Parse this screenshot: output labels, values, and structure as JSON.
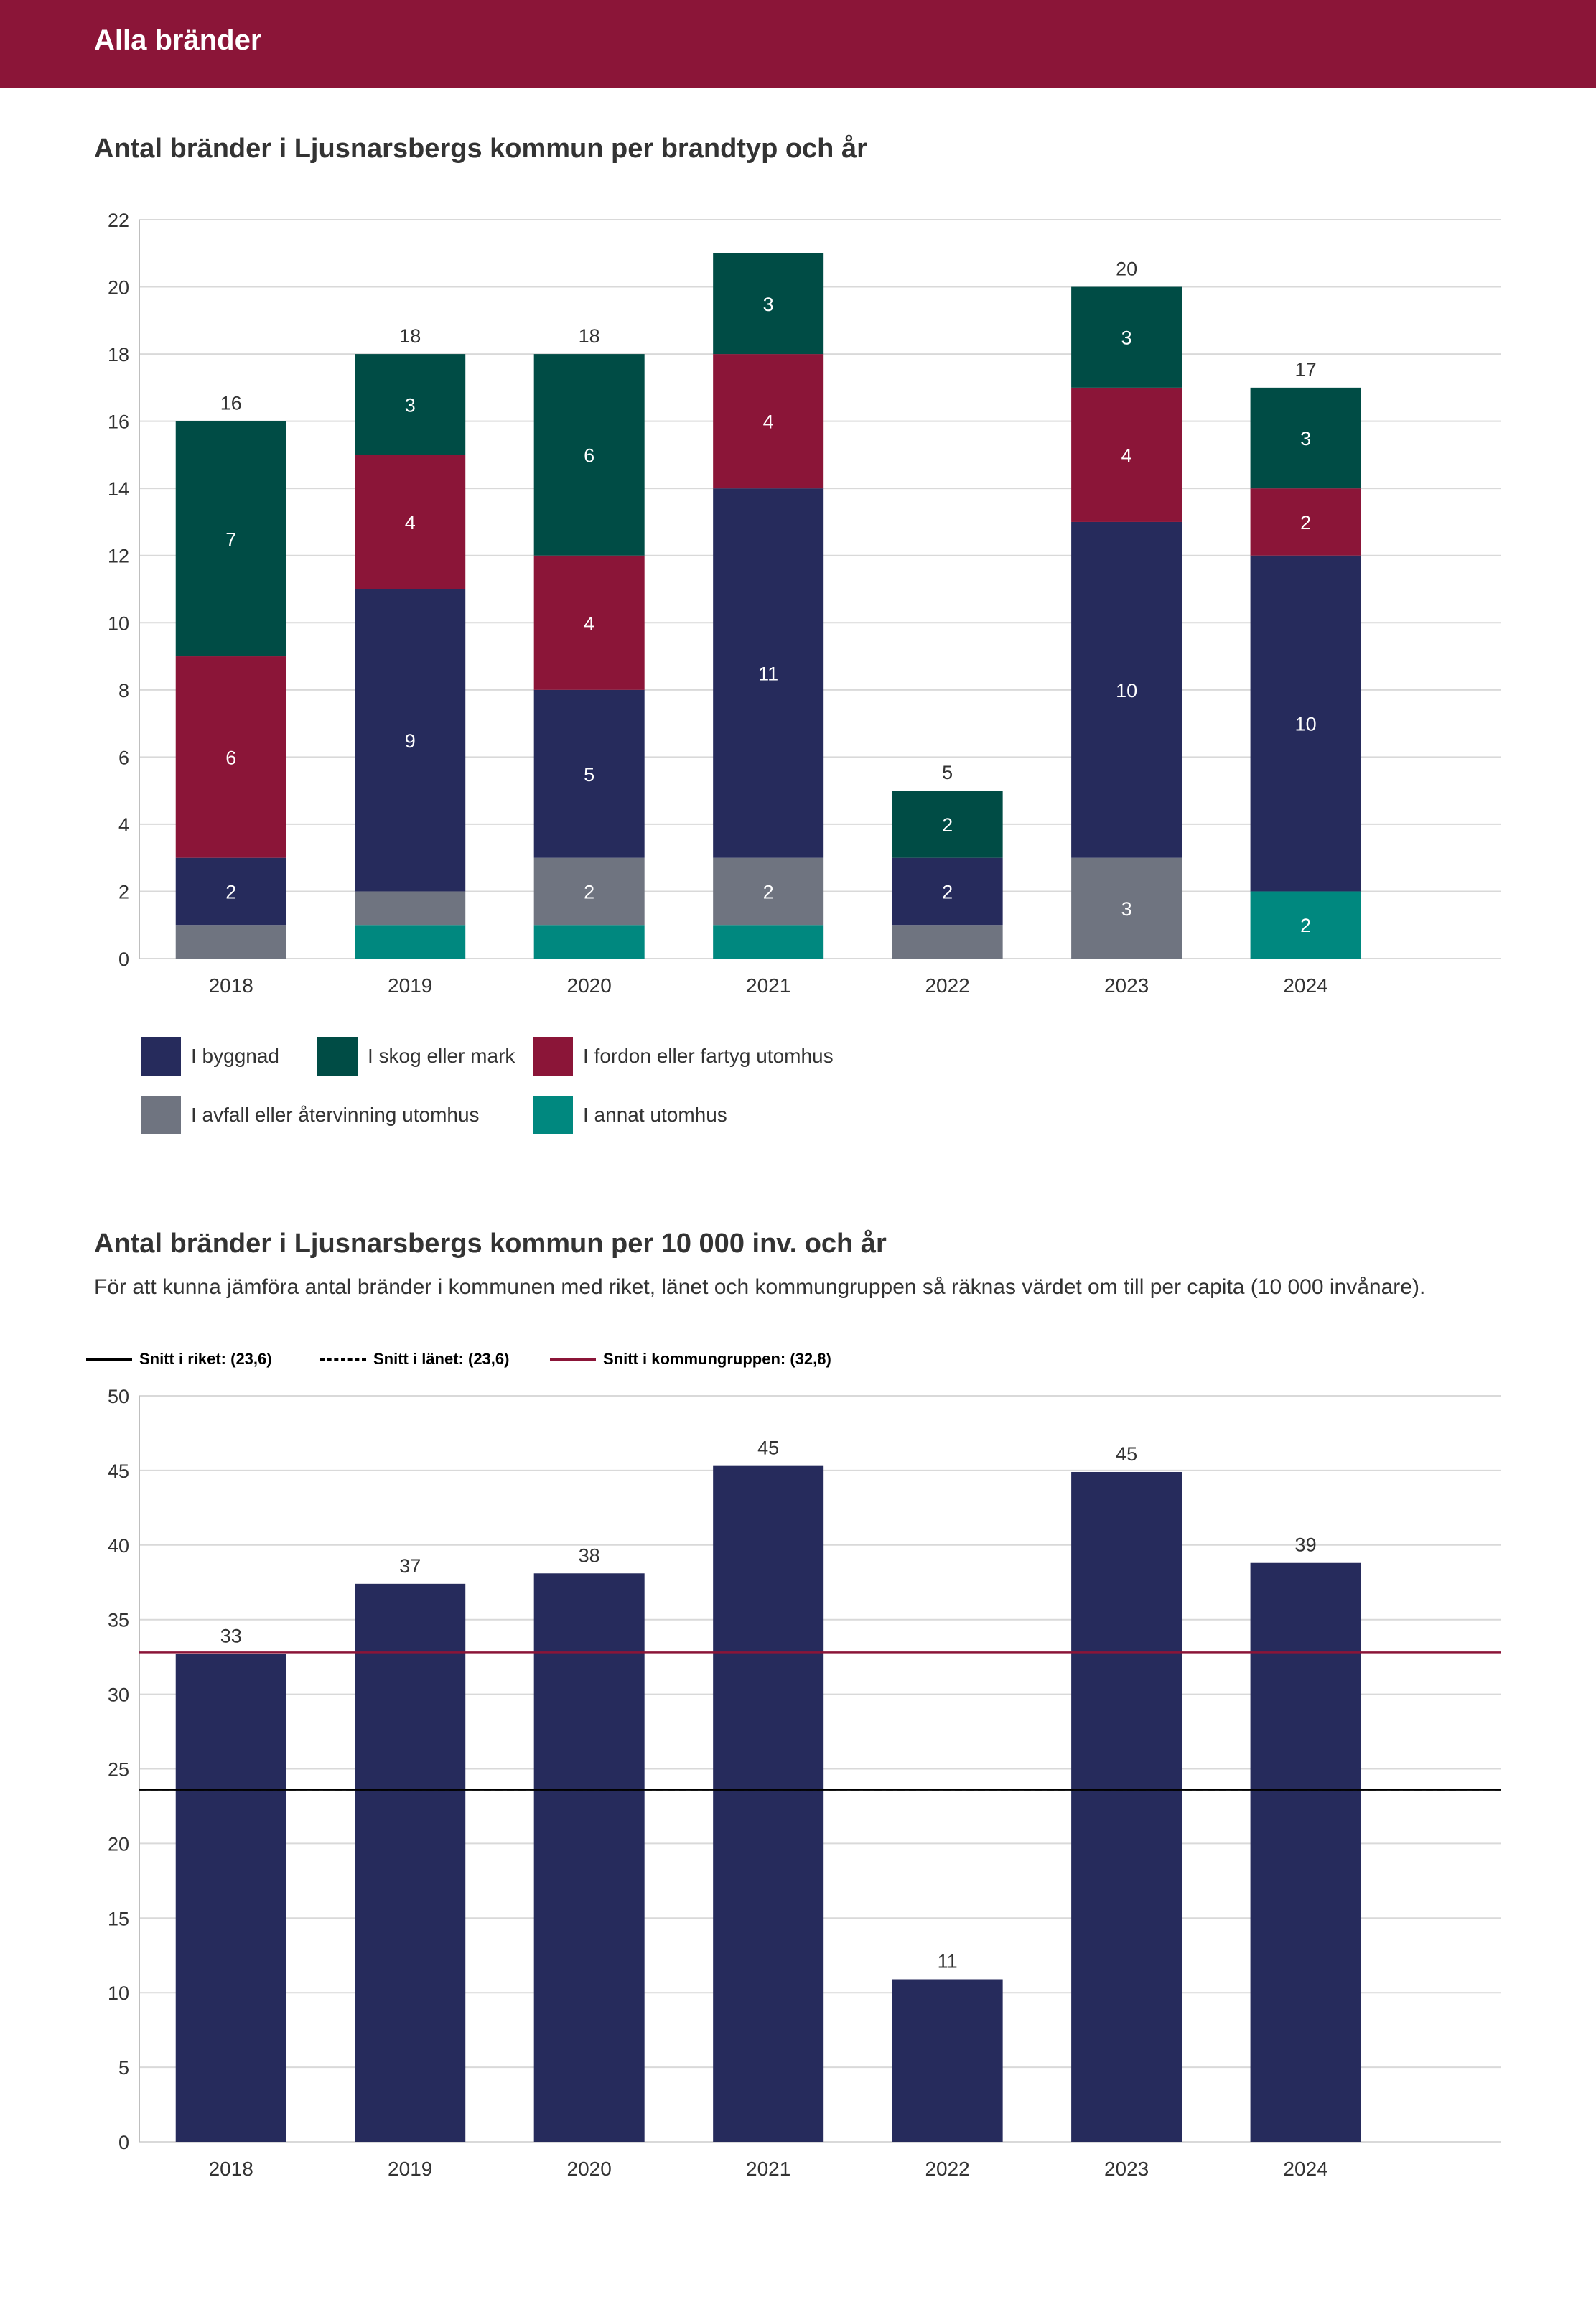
{
  "header": {
    "title": "Alla bränder"
  },
  "colors": {
    "header_bg": "#8b1538",
    "I byggnad": "#262b5c",
    "I skog eller mark": "#004c45",
    "I fordon eller fartyg utomhus": "#8b1538",
    "I avfall eller återvinning utomhus": "#6f7480",
    "I annat utomhus": "#00887f",
    "grid": "#d9d9d9",
    "riket": "#000000",
    "lanet": "#000000",
    "kommungrupp": "#8b1538"
  },
  "chart1": {
    "title": "Antal bränder i Ljusnarsbergs kommun per brandtyp och år",
    "legend": [
      "I byggnad",
      "I skog eller mark",
      "I fordon eller fartyg utomhus",
      "I avfall eller återvinning utomhus",
      "I annat utomhus"
    ]
  },
  "chart2": {
    "title": "Antal bränder i Ljusnarsbergs kommun per 10 000 inv. och år",
    "subtitle": "För att kunna jämföra antal bränder i kommunen med riket, länet och kommungruppen så räknas värdet om till per capita (10 000 invånare).",
    "reference_legend": [
      "Snitt i riket: (23,6)",
      "Snitt i länet: (23,6)",
      "Snitt i kommungruppen: (32,8)"
    ]
  },
  "chart_data": [
    {
      "type": "bar",
      "stacked": true,
      "title": "Antal bränder i Ljusnarsbergs kommun per brandtyp och år",
      "categories": [
        "2018",
        "2019",
        "2020",
        "2021",
        "2022",
        "2023",
        "2024"
      ],
      "series": [
        {
          "name": "I annat utomhus",
          "values": [
            0,
            1,
            1,
            1,
            0,
            0,
            2
          ],
          "labels": [
            "",
            "",
            "",
            "",
            "",
            "",
            "2"
          ]
        },
        {
          "name": "I avfall eller återvinning utomhus",
          "values": [
            1,
            1,
            2,
            2,
            1,
            3,
            0
          ],
          "labels": [
            "",
            "",
            "2",
            "2",
            "",
            "3",
            ""
          ]
        },
        {
          "name": "I byggnad",
          "values": [
            2,
            9,
            5,
            11,
            2,
            10,
            10
          ],
          "labels": [
            "2",
            "9",
            "5",
            "11",
            "2",
            "10",
            "10"
          ]
        },
        {
          "name": "I fordon eller fartyg utomhus",
          "values": [
            6,
            4,
            4,
            4,
            0,
            4,
            2
          ],
          "labels": [
            "6",
            "4",
            "4",
            "4",
            "",
            "4",
            "2"
          ]
        },
        {
          "name": "I skog eller mark",
          "values": [
            7,
            3,
            6,
            3,
            2,
            3,
            3
          ],
          "labels": [
            "7",
            "3",
            "6",
            "3",
            "2",
            "3",
            "3"
          ]
        }
      ],
      "totals": [
        "16",
        "18",
        "18",
        "",
        "5",
        "20",
        "17"
      ],
      "ylim": [
        0,
        22
      ],
      "yticks": [
        "0",
        "2",
        "4",
        "6",
        "8",
        "10",
        "12",
        "14",
        "16",
        "18",
        "20",
        "22"
      ],
      "legend_position": "bottom"
    },
    {
      "type": "bar",
      "title": "Antal bränder i Ljusnarsbergs kommun per 10 000 inv. och år",
      "categories": [
        "2018",
        "2019",
        "2020",
        "2021",
        "2022",
        "2023",
        "2024"
      ],
      "values": [
        32.7,
        37.4,
        38.1,
        45.3,
        10.9,
        44.9,
        38.8
      ],
      "labels": [
        "33",
        "37",
        "38",
        "45",
        "11",
        "45",
        "39"
      ],
      "reference_lines": [
        {
          "name": "Snitt i riket",
          "value": 23.6,
          "style": "solid"
        },
        {
          "name": "Snitt i länet",
          "value": 23.6,
          "style": "dashed"
        },
        {
          "name": "Snitt i kommungruppen",
          "value": 32.8,
          "style": "solid"
        }
      ],
      "ylim": [
        0,
        50
      ],
      "yticks": [
        "0",
        "5",
        "10",
        "15",
        "20",
        "25",
        "30",
        "35",
        "40",
        "45",
        "50"
      ],
      "legend_position": "top"
    }
  ]
}
